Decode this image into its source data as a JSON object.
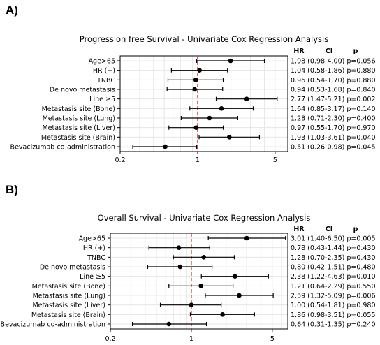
{
  "panels": [
    {
      "letter": "A)",
      "title": "Progression free Survival - Univariate Cox Regression Analysis",
      "headers": {
        "hr": "HR",
        "ci": "CI",
        "p": "p"
      },
      "chart_data": {
        "type": "forest",
        "xscale": "log",
        "xlim": [
          0.2,
          6.5
        ],
        "xticks": [
          0.2,
          1,
          5
        ],
        "xtick_labels": [
          "0.2",
          "1",
          "5"
        ],
        "reference_line": 1,
        "reference_color": "#d62728",
        "grid": true,
        "rows": [
          {
            "label": "Age>65",
            "hr": 1.98,
            "lo": 0.98,
            "hi": 4.0,
            "stats": "1.98 (0.98-4.00) p=0.056"
          },
          {
            "label": "HR (+)",
            "hr": 1.04,
            "lo": 0.58,
            "hi": 1.86,
            "stats": "1.04 (0.58-1.86) p=0.880"
          },
          {
            "label": "TNBC",
            "hr": 0.96,
            "lo": 0.54,
            "hi": 1.7,
            "stats": "0.96 (0.54-1.70) p=0.880"
          },
          {
            "label": "De novo metastasis",
            "hr": 0.94,
            "lo": 0.53,
            "hi": 1.68,
            "stats": "0.94 (0.53-1.68) p=0.840"
          },
          {
            "label": "Line ≥5",
            "hr": 2.77,
            "lo": 1.47,
            "hi": 5.21,
            "stats": "2.77 (1.47-5.21) p=0.002"
          },
          {
            "label": "Metastasis site (Bone)",
            "hr": 1.64,
            "lo": 0.85,
            "hi": 3.17,
            "stats": "1.64 (0.85-3.17) p=0.140"
          },
          {
            "label": "Metastasis site (Lung)",
            "hr": 1.28,
            "lo": 0.71,
            "hi": 2.3,
            "stats": "1.28 (0.71-2.30) p=0.400"
          },
          {
            "label": "Metastasis site (Liver)",
            "hr": 0.97,
            "lo": 0.55,
            "hi": 1.7,
            "stats": "0.97 (0.55-1.70) p=0.970"
          },
          {
            "label": "Metastasis site (Brain)",
            "hr": 1.93,
            "lo": 1.03,
            "hi": 3.61,
            "stats": "1.93 (1.03-3.61) p=0.040"
          },
          {
            "label": "Bevacizumab co-administration",
            "hr": 0.51,
            "lo": 0.26,
            "hi": 0.98,
            "stats": "0.51 (0.26-0.98) p=0.045"
          }
        ]
      }
    },
    {
      "letter": "B)",
      "title": "Overall Survival - Univariate Cox Regression Analysis",
      "headers": {
        "hr": "HR",
        "ci": "CI",
        "p": "p"
      },
      "chart_data": {
        "type": "forest",
        "xscale": "log",
        "xlim": [
          0.2,
          6.8
        ],
        "xticks": [
          0.2,
          1,
          5
        ],
        "xtick_labels": [
          "0.2",
          "1",
          "5"
        ],
        "reference_line": 1,
        "reference_color": "#d62728",
        "grid": true,
        "rows": [
          {
            "label": "Age>65",
            "hr": 3.01,
            "lo": 1.4,
            "hi": 6.5,
            "stats": "3.01 (1.40-6.50) p=0.005"
          },
          {
            "label": "HR (+)",
            "hr": 0.78,
            "lo": 0.43,
            "hi": 1.44,
            "stats": "0.78 (0.43-1.44) p=0.430"
          },
          {
            "label": "TNBC",
            "hr": 1.28,
            "lo": 0.7,
            "hi": 2.35,
            "stats": "1.28 (0.70-2.35) p=0.430"
          },
          {
            "label": "De novo metastasis",
            "hr": 0.8,
            "lo": 0.42,
            "hi": 1.51,
            "stats": "0.80 (0.42-1.51) p=0.480"
          },
          {
            "label": "Line ≥5",
            "hr": 2.38,
            "lo": 1.22,
            "hi": 4.63,
            "stats": "2.38 (1.22-4.63) p=0.010"
          },
          {
            "label": "Metastasis site (Bone)",
            "hr": 1.21,
            "lo": 0.64,
            "hi": 2.29,
            "stats": "1.21 (0.64-2.29) p=0.550"
          },
          {
            "label": "Metastasis site (Lung)",
            "hr": 2.59,
            "lo": 1.32,
            "hi": 5.09,
            "stats": "2.59 (1.32-5.09) p=0.006"
          },
          {
            "label": "Metastasis site (Liver)",
            "hr": 1.0,
            "lo": 0.54,
            "hi": 1.81,
            "stats": "1.00 (0.54-1.81) p=0.980"
          },
          {
            "label": "Metastasis site (Brain)",
            "hr": 1.86,
            "lo": 0.98,
            "hi": 3.51,
            "stats": "1.86 (0.98-3.51) p=0.055"
          },
          {
            "label": "Bevacizumab co-administration",
            "hr": 0.64,
            "lo": 0.31,
            "hi": 1.35,
            "stats": "0.64 (0.31-1.35) p=0.240"
          }
        ]
      }
    }
  ]
}
